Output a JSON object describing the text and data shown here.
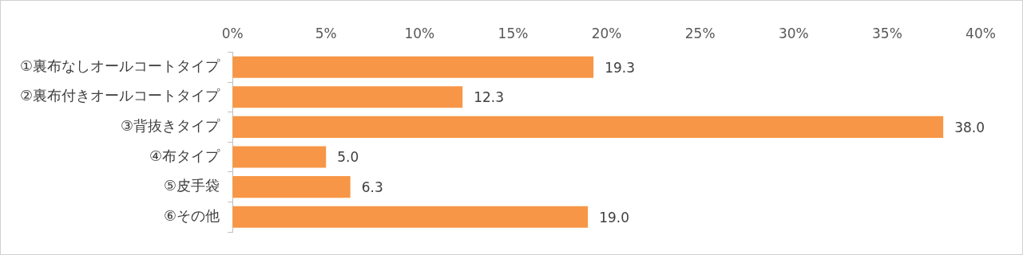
{
  "chart_data": {
    "type": "bar",
    "orientation": "horizontal",
    "categories": [
      "①裏布なしオールコートタイプ",
      "②裏布付きオールコートタイプ",
      "③背抜きタイプ",
      "④布タイプ",
      "⑤皮手袋",
      "⑥その他"
    ],
    "values": [
      19.3,
      12.3,
      38.0,
      5.0,
      6.3,
      19.0
    ],
    "value_labels": [
      "19.3",
      "12.3",
      "38.0",
      "5.0",
      "6.3",
      "19.0"
    ],
    "color": "#f79646",
    "xlim": [
      0,
      40
    ],
    "xticks": [
      {
        "value": 0,
        "label": "0%"
      },
      {
        "value": 5,
        "label": "5%"
      },
      {
        "value": 10,
        "label": "10%"
      },
      {
        "value": 15,
        "label": "15%"
      },
      {
        "value": 20,
        "label": "20%"
      },
      {
        "value": 25,
        "label": "25%"
      },
      {
        "value": 30,
        "label": "30%"
      },
      {
        "value": 35,
        "label": "35%"
      },
      {
        "value": 40,
        "label": "40%"
      }
    ]
  }
}
